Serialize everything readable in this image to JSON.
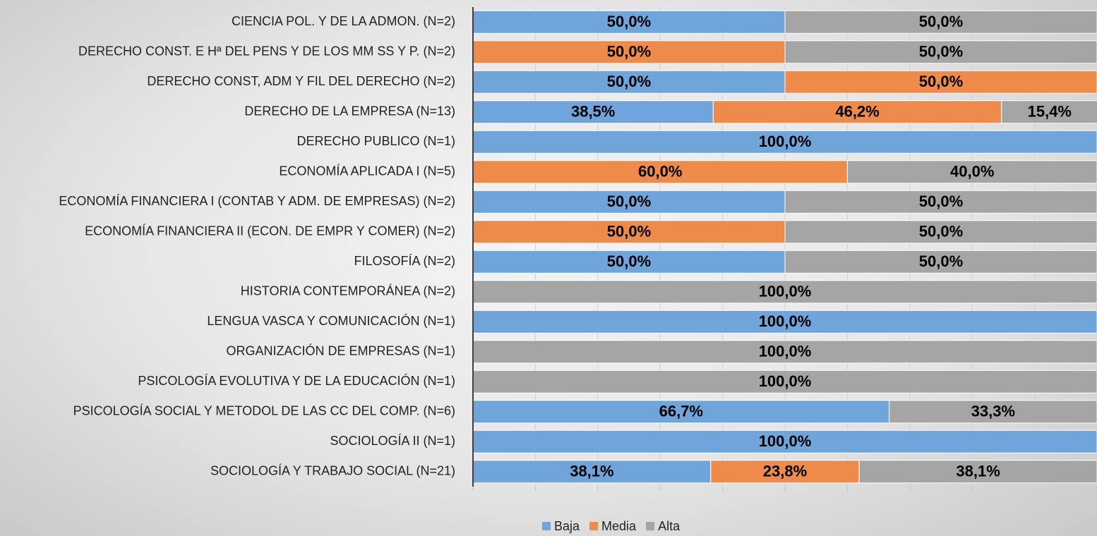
{
  "chart_data": {
    "type": "stacked-barh",
    "categories": [
      "CIENCIA POL. Y DE LA ADMON. (N=2)",
      "DERECHO CONST. E Hª DEL PENS Y DE LOS MM SS Y P. (N=2)",
      "DERECHO CONST, ADM Y FIL DEL DERECHO (N=2)",
      "DERECHO DE LA EMPRESA (N=13)",
      "DERECHO PUBLICO (N=1)",
      "ECONOMÍA APLICADA I (N=5)",
      "ECONOMÍA FINANCIERA I (CONTAB Y  ADM. DE EMPRESAS) (N=2)",
      "ECONOMÍA FINANCIERA II (ECON. DE EMPR Y COMER) (N=2)",
      "FILOSOFÍA (N=2)",
      "HISTORIA CONTEMPORÁNEA (N=2)",
      "LENGUA VASCA Y COMUNICACIÓN (N=1)",
      "ORGANIZACIÓN DE EMPRESAS (N=1)",
      "PSICOLOGÍA EVOLUTIVA Y DE LA EDUCACIÓN (N=1)",
      "PSICOLOGÍA SOCIAL Y METODOL DE LAS CC DEL COMP. (N=6)",
      "SOCIOLOGÍA II (N=1)",
      "SOCIOLOGÍA Y TRABAJO SOCIAL (N=21)"
    ],
    "series": [
      {
        "name": "Baja",
        "color": "#6fa5db",
        "values": [
          50,
          null,
          50,
          38.5,
          100,
          null,
          50,
          null,
          50,
          null,
          100,
          null,
          null,
          66.7,
          100,
          38.1
        ],
        "value_labels": [
          "50,0%",
          null,
          "50,0%",
          "38,5%",
          "100,0%",
          null,
          "50,0%",
          null,
          "50,0%",
          null,
          "100,0%",
          null,
          null,
          "66,7%",
          "100,0%",
          "38,1%"
        ]
      },
      {
        "name": "Media",
        "color": "#ee8b4b",
        "values": [
          null,
          50,
          50,
          46.2,
          null,
          60,
          null,
          50,
          null,
          null,
          null,
          null,
          null,
          null,
          null,
          23.8
        ],
        "value_labels": [
          null,
          "50,0%",
          "50,0%",
          "46,2%",
          null,
          "60,0%",
          null,
          "50,0%",
          null,
          null,
          null,
          null,
          null,
          null,
          null,
          "23,8%"
        ]
      },
      {
        "name": "Alta",
        "color": "#a5a5a5",
        "values": [
          50,
          50,
          null,
          15.4,
          null,
          40,
          50,
          50,
          50,
          100,
          null,
          100,
          100,
          33.3,
          null,
          38.1
        ],
        "value_labels": [
          "50,0%",
          "50,0%",
          null,
          "15,4%",
          null,
          "40,0%",
          "50,0%",
          "50,0%",
          "50,0%",
          "100,0%",
          null,
          "100,0%",
          "100,0%",
          "33,3%",
          null,
          "38,1%"
        ]
      }
    ],
    "xlim": [
      0,
      100
    ],
    "xticks": [
      0,
      10,
      20,
      30,
      40,
      50,
      60,
      70,
      80,
      90,
      100
    ],
    "grid": true,
    "legend": "bottom"
  }
}
